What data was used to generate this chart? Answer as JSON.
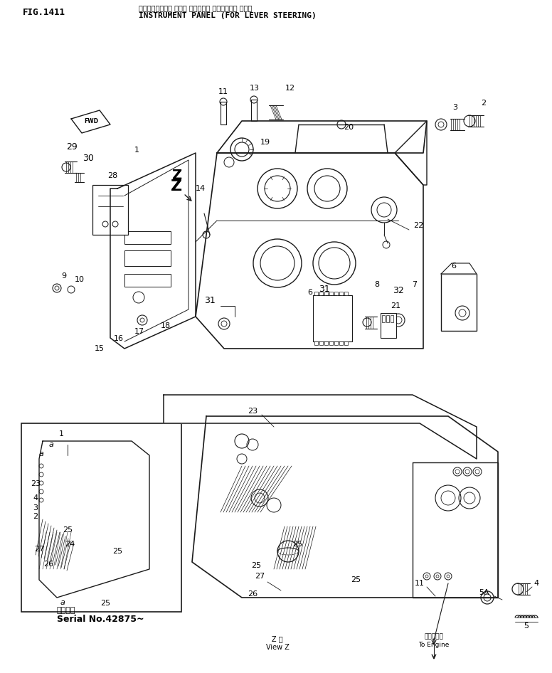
{
  "title_japanese": "インスツルメント パネル （レバー－ ステアリング ヨツ）",
  "title_fig": "FIG.1411",
  "title_en": "INSTRUMENT PANEL (FOR LEVER STEERING)",
  "serial_label_ja": "適用号機",
  "serial_label_en": "Serial No.42875~",
  "view_z_ja": "Z 視",
  "view_z_en": "View Z",
  "engine_ja": "エンジンへ",
  "engine_en": "To Engine",
  "bg_color": "#ffffff",
  "line_color": "#1a1a1a",
  "text_color": "#000000"
}
